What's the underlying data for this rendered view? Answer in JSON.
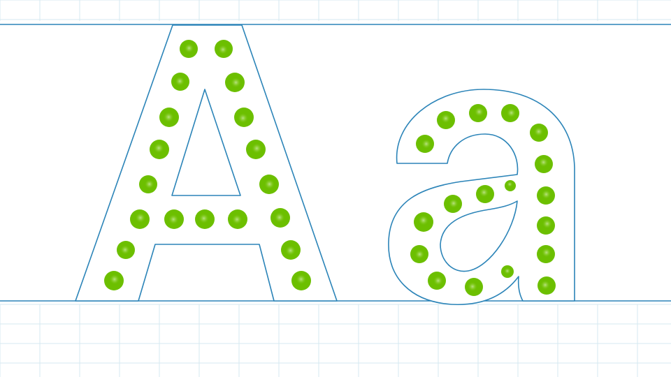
{
  "letters": [
    {
      "name": "uppercase-a",
      "char": "A"
    },
    {
      "name": "lowercase-a",
      "char": "a"
    }
  ],
  "colors": {
    "background": "#ffffff",
    "grid": "#d6e8f1",
    "guideline": "#2b84b8",
    "outline": "#2b84b8",
    "dot": "#6cbf00",
    "dot_highlight": "#ffffff"
  }
}
